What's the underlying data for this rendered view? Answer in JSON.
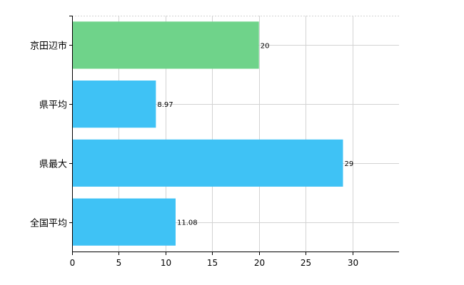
{
  "chart_data": {
    "type": "bar",
    "orientation": "horizontal",
    "categories": [
      "京田辺市",
      "県平均",
      "県最大",
      "全国平均"
    ],
    "values": [
      20,
      8.97,
      29,
      11.08
    ],
    "data_labels": [
      "20",
      "8.97",
      "29",
      "11.08"
    ],
    "bar_colors": [
      "#6fd38a",
      "#3fc2f5",
      "#3fc2f5",
      "#3fc2f5"
    ],
    "xlim": [
      0,
      35
    ],
    "x_ticks": [
      0,
      5,
      10,
      15,
      20,
      25,
      30
    ],
    "x_tick_labels": [
      "0",
      "5",
      "10",
      "15",
      "20",
      "25",
      "30"
    ],
    "grid": true,
    "title": "",
    "xlabel": "",
    "ylabel": ""
  }
}
